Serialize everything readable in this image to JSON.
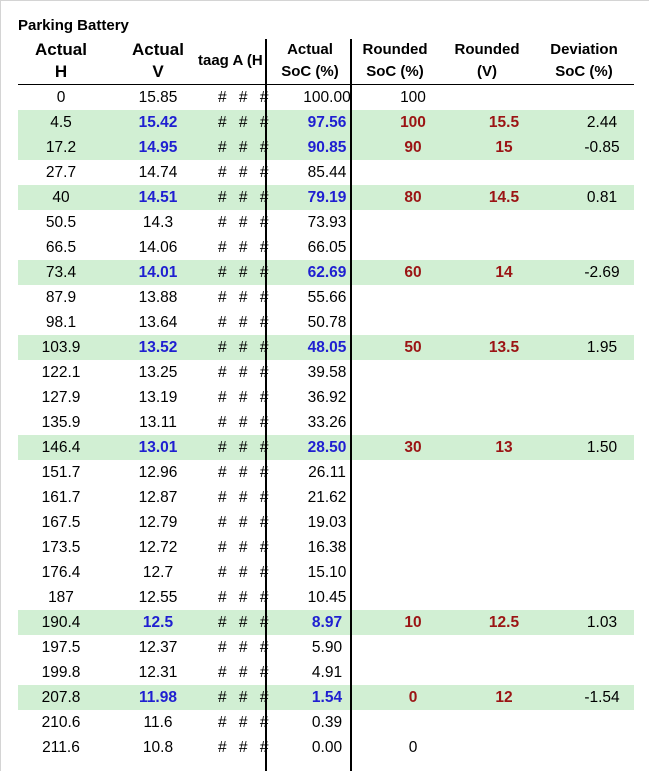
{
  "title": "Parking Battery",
  "headers": {
    "actual_h": [
      "Actual",
      "H"
    ],
    "actual_v": [
      "Actual",
      "V"
    ],
    "hidden_cols": "taag A (H",
    "actual_soc": [
      "Actual",
      "SoC (%)"
    ],
    "rounded_soc": [
      "Rounded",
      "SoC (%)"
    ],
    "rounded_v": [
      "Rounded",
      "(V)"
    ],
    "deviation": [
      "Deviation",
      "SoC (%)"
    ]
  },
  "rows": [
    {
      "h": "0",
      "v": "15.85",
      "hash": "# # #",
      "soc": "100.00",
      "rsoc": "100",
      "rv": "",
      "dev": "",
      "hl": false
    },
    {
      "h": "4.5",
      "v": "15.42",
      "hash": "# # #",
      "soc": "97.56",
      "rsoc": "100",
      "rv": "15.5",
      "dev": "2.44",
      "hl": true
    },
    {
      "h": "17.2",
      "v": "14.95",
      "hash": "# # #",
      "soc": "90.85",
      "rsoc": "90",
      "rv": "15",
      "dev": "-0.85",
      "hl": true
    },
    {
      "h": "27.7",
      "v": "14.74",
      "hash": "# # #",
      "soc": "85.44",
      "rsoc": "",
      "rv": "",
      "dev": "",
      "hl": false
    },
    {
      "h": "40",
      "v": "14.51",
      "hash": "# # #",
      "soc": "79.19",
      "rsoc": "80",
      "rv": "14.5",
      "dev": "0.81",
      "hl": true
    },
    {
      "h": "50.5",
      "v": "14.3",
      "hash": "# # #",
      "soc": "73.93",
      "rsoc": "",
      "rv": "",
      "dev": "",
      "hl": false
    },
    {
      "h": "66.5",
      "v": "14.06",
      "hash": "# # #",
      "soc": "66.05",
      "rsoc": "",
      "rv": "",
      "dev": "",
      "hl": false
    },
    {
      "h": "73.4",
      "v": "14.01",
      "hash": "# # #",
      "soc": "62.69",
      "rsoc": "60",
      "rv": "14",
      "dev": "-2.69",
      "hl": true
    },
    {
      "h": "87.9",
      "v": "13.88",
      "hash": "# # #",
      "soc": "55.66",
      "rsoc": "",
      "rv": "",
      "dev": "",
      "hl": false
    },
    {
      "h": "98.1",
      "v": "13.64",
      "hash": "# # #",
      "soc": "50.78",
      "rsoc": "",
      "rv": "",
      "dev": "",
      "hl": false
    },
    {
      "h": "103.9",
      "v": "13.52",
      "hash": "# # #",
      "soc": "48.05",
      "rsoc": "50",
      "rv": "13.5",
      "dev": "1.95",
      "hl": true
    },
    {
      "h": "122.1",
      "v": "13.25",
      "hash": "# # #",
      "soc": "39.58",
      "rsoc": "",
      "rv": "",
      "dev": "",
      "hl": false
    },
    {
      "h": "127.9",
      "v": "13.19",
      "hash": "# # #",
      "soc": "36.92",
      "rsoc": "",
      "rv": "",
      "dev": "",
      "hl": false
    },
    {
      "h": "135.9",
      "v": "13.11",
      "hash": "# # #",
      "soc": "33.26",
      "rsoc": "",
      "rv": "",
      "dev": "",
      "hl": false
    },
    {
      "h": "146.4",
      "v": "13.01",
      "hash": "# # #",
      "soc": "28.50",
      "rsoc": "30",
      "rv": "13",
      "dev": "1.50",
      "hl": true
    },
    {
      "h": "151.7",
      "v": "12.96",
      "hash": "# # #",
      "soc": "26.11",
      "rsoc": "",
      "rv": "",
      "dev": "",
      "hl": false
    },
    {
      "h": "161.7",
      "v": "12.87",
      "hash": "# # #",
      "soc": "21.62",
      "rsoc": "",
      "rv": "",
      "dev": "",
      "hl": false
    },
    {
      "h": "167.5",
      "v": "12.79",
      "hash": "# # #",
      "soc": "19.03",
      "rsoc": "",
      "rv": "",
      "dev": "",
      "hl": false
    },
    {
      "h": "173.5",
      "v": "12.72",
      "hash": "# # #",
      "soc": "16.38",
      "rsoc": "",
      "rv": "",
      "dev": "",
      "hl": false
    },
    {
      "h": "176.4",
      "v": "12.7",
      "hash": "# # #",
      "soc": "15.10",
      "rsoc": "",
      "rv": "",
      "dev": "",
      "hl": false
    },
    {
      "h": "187",
      "v": "12.55",
      "hash": "# # #",
      "soc": "10.45",
      "rsoc": "",
      "rv": "",
      "dev": "",
      "hl": false
    },
    {
      "h": "190.4",
      "v": "12.5",
      "hash": "# # #",
      "soc": "8.97",
      "rsoc": "10",
      "rv": "12.5",
      "dev": "1.03",
      "hl": true
    },
    {
      "h": "197.5",
      "v": "12.37",
      "hash": "# # #",
      "soc": "5.90",
      "rsoc": "",
      "rv": "",
      "dev": "",
      "hl": false
    },
    {
      "h": "199.8",
      "v": "12.31",
      "hash": "# # #",
      "soc": "4.91",
      "rsoc": "",
      "rv": "",
      "dev": "",
      "hl": false
    },
    {
      "h": "207.8",
      "v": "11.98",
      "hash": "# # #",
      "soc": "1.54",
      "rsoc": "0",
      "rv": "12",
      "dev": "-1.54",
      "hl": true
    },
    {
      "h": "210.6",
      "v": "11.6",
      "hash": "# # #",
      "soc": "0.39",
      "rsoc": "",
      "rv": "",
      "dev": "",
      "hl": false
    },
    {
      "h": "211.6",
      "v": "10.8",
      "hash": "# # #",
      "soc": "0.00",
      "rsoc": "0",
      "rv": "",
      "dev": "",
      "hl": false
    }
  ],
  "colors": {
    "highlight_row": "#d1efd3",
    "highlight_value": "#1f1fd1",
    "rounded_value": "#9b1414",
    "gridline": "#d4d4d4"
  }
}
